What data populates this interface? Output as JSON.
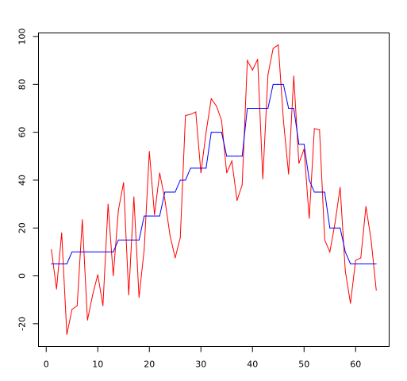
{
  "chart_data": {
    "type": "line",
    "title": "",
    "xlabel": "",
    "ylabel": "",
    "xlim": [
      -1.5,
      66.5
    ],
    "ylim": [
      -29.5,
      101.5
    ],
    "grid": false,
    "legend": "none",
    "x_ticks": [
      0,
      10,
      20,
      30,
      40,
      50,
      60
    ],
    "x_tick_labels": [
      "0",
      "10",
      "20",
      "30",
      "40",
      "50",
      "60"
    ],
    "y_ticks": [
      -20,
      0,
      20,
      40,
      60,
      80,
      100
    ],
    "y_tick_labels": [
      "-20",
      "0",
      "20",
      "40",
      "60",
      "80",
      "100"
    ],
    "x": [
      1,
      2,
      3,
      4,
      5,
      6,
      7,
      8,
      9,
      10,
      11,
      12,
      13,
      14,
      15,
      16,
      17,
      18,
      19,
      20,
      21,
      22,
      23,
      24,
      25,
      26,
      27,
      28,
      29,
      30,
      31,
      32,
      33,
      34,
      35,
      36,
      37,
      38,
      39,
      40,
      41,
      42,
      43,
      44,
      45,
      46,
      47,
      48,
      49,
      50,
      51,
      52,
      53,
      54,
      55,
      56,
      57,
      58,
      59,
      60,
      61,
      62,
      63,
      64
    ],
    "series": [
      {
        "color": "#ff0000",
        "values": [
          11,
          -5.5,
          18,
          -24.5,
          -14,
          -12.5,
          23.5,
          -18.5,
          -8,
          0.5,
          -12.5,
          30,
          0,
          27.5,
          39,
          -8,
          33,
          -9,
          11,
          52,
          25.5,
          43,
          32,
          17,
          7.5,
          16,
          67,
          67.5,
          68.5,
          43,
          60,
          74,
          71,
          65,
          43,
          48,
          31.5,
          38,
          90,
          86,
          90.5,
          40.5,
          84,
          95,
          96.5,
          65,
          42.5,
          83.5,
          47,
          53,
          24,
          61.5,
          61,
          15,
          10,
          22,
          37,
          2,
          -11.5,
          6.5,
          7.5,
          29,
          15,
          -6
        ]
      },
      {
        "color": "#0000ff",
        "values": [
          5,
          5,
          5,
          5,
          10,
          10,
          10,
          10,
          10,
          10,
          10,
          10,
          10,
          15,
          15,
          15,
          15,
          15,
          25,
          25,
          25,
          25,
          35,
          35,
          35,
          40,
          40,
          45,
          45,
          45,
          45,
          60,
          60,
          60,
          50,
          50,
          50,
          50,
          70,
          70,
          70,
          70,
          70,
          80,
          80,
          80,
          70,
          70,
          55,
          55,
          40,
          35,
          35,
          35,
          20,
          20,
          20,
          10,
          5,
          5,
          5,
          5,
          5,
          5
        ]
      }
    ]
  }
}
